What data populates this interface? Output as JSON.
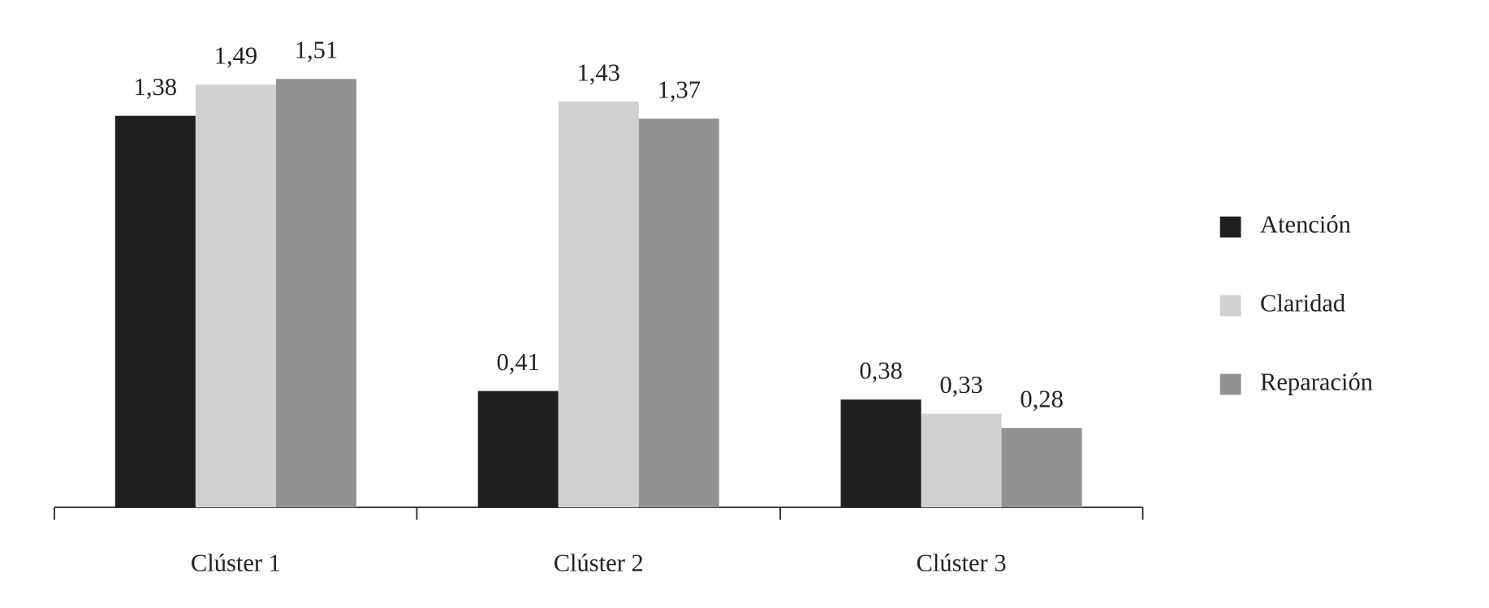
{
  "chart_data": {
    "type": "bar",
    "categories": [
      "Clúster 1",
      "Clúster 2",
      "Clúster 3"
    ],
    "series": [
      {
        "name": "Atención",
        "color": "#1f1f1f",
        "values": [
          1.38,
          0.41,
          0.38
        ],
        "value_labels": [
          "1,38",
          "0,41",
          "0,38"
        ]
      },
      {
        "name": "Claridad",
        "color": "#d0d0d0",
        "values": [
          1.49,
          1.43,
          0.33
        ],
        "value_labels": [
          "1,49",
          "1,43",
          "0,33"
        ]
      },
      {
        "name": "Reparación",
        "color": "#929292",
        "values": [
          1.51,
          1.37,
          0.28
        ],
        "value_labels": [
          "1,51",
          "1,37",
          "0,28"
        ]
      }
    ],
    "legend": "right"
  }
}
